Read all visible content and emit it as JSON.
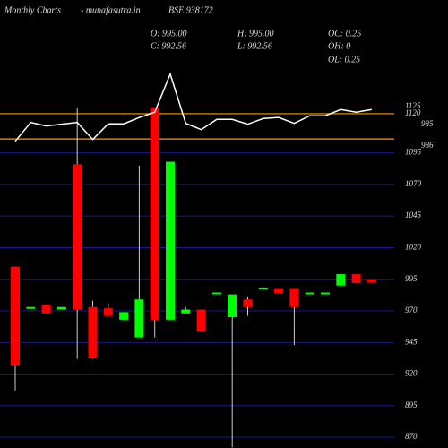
{
  "chart_data": {
    "type": "candlestick",
    "title": "Monthly Charts",
    "subtitle": "- munafasutra.in",
    "symbol": "BSE 938172",
    "info": [
      {
        "label": "O: 995.00"
      },
      {
        "label": "H: 995.00"
      },
      {
        "label": "OC: 0.25"
      },
      {
        "label": "C: 992.56"
      },
      {
        "label": "L: 992.56"
      },
      {
        "label": "OH: 0"
      },
      {
        "label": "OL: 0.25"
      }
    ],
    "open": [
      1005,
      972,
      975,
      971,
      1086,
      973,
      972,
      963,
      949,
      1131,
      963,
      968,
      971,
      984,
      965,
      979,
      988,
      988,
      988,
      984,
      984.5,
      990,
      999,
      995
    ],
    "high": [
      1005,
      973,
      975,
      973,
      1131,
      978,
      976,
      969,
      1085,
      1131,
      1088,
      973,
      971,
      984.5,
      983,
      981,
      988.5,
      988,
      988,
      984,
      984.5,
      999,
      999,
      995
    ],
    "low": [
      907,
      972,
      968,
      971,
      932,
      932,
      966,
      963,
      949,
      949,
      963,
      968,
      954,
      984,
      862,
      966,
      988,
      984,
      943,
      984,
      984.5,
      990,
      992,
      992.56
    ],
    "close": [
      927,
      973,
      968,
      973,
      971,
      933,
      966,
      969,
      979,
      963,
      1088,
      971,
      954,
      984.5,
      983,
      973,
      988.5,
      984,
      973,
      984.5,
      984.5,
      999,
      992,
      992.56
    ],
    "up_color": "#00ff00",
    "down_color": "#ff0000",
    "wick_color": "#cccccc",
    "overlay": {
      "color": "#ffffff",
      "values": [
        1104.2,
        1119.1,
        1116.3,
        1117.7,
        1119.1,
        1105.6,
        1118,
        1118,
        1123,
        1127.2,
        1157.4,
        1118.4,
        1113.4,
        1121.5,
        1121.5,
        1117.7,
        1122.2,
        1123,
        1118.4,
        1124.4,
        1124.4,
        1129.3,
        1127.2,
        1129.3
      ]
    },
    "hlines": {
      "color": "#ff9900",
      "values": [
        1126,
        1106
      ]
    },
    "overlay_labels": [
      "1125",
      "1120",
      "985",
      "986"
    ],
    "ylim": [
      861.5,
      1216
    ],
    "yticks": [
      1095,
      1070,
      1045,
      1020,
      995,
      970,
      945,
      920,
      895,
      870
    ],
    "grid": true,
    "grid_color": "#1a1a8c"
  }
}
